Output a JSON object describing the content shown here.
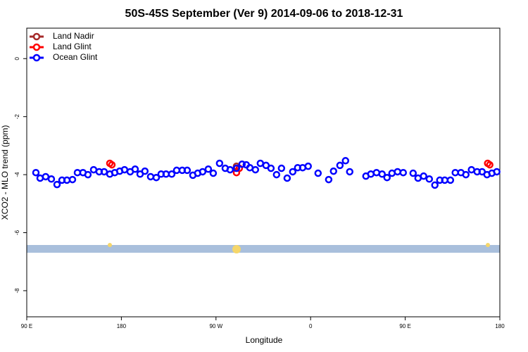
{
  "chart_data": {
    "type": "scatter",
    "title": "50S-45S September (Ver 9)   2014-09-06 to 2018-12-31",
    "x_label": "Longitude",
    "y_label": "XCO2 - MLO trend (ppm)",
    "xlim": [
      90,
      540
    ],
    "xticks": [
      {
        "value": 90,
        "label": "90 E"
      },
      {
        "value": 180,
        "label": "180"
      },
      {
        "value": 270,
        "label": "90 W"
      },
      {
        "value": 360,
        "label": "0"
      },
      {
        "value": 450,
        "label": "90 E"
      },
      {
        "value": 540,
        "label": "180"
      }
    ],
    "ylim": [
      -8.9,
      1.05
    ],
    "yticks": [
      0,
      -2,
      -4,
      -6,
      -8
    ],
    "legend": "top-left",
    "series": [
      {
        "name": "Land Nadir",
        "color": "#a52a2a",
        "x": [
          289.5
        ],
        "values": [
          -3.71
        ]
      },
      {
        "name": "Land Glint",
        "color": "#ff0000",
        "x": [
          169,
          171,
          289.5,
          292.2,
          528.4,
          530.4
        ],
        "values": [
          -3.61,
          -3.66,
          -3.93,
          -3.78,
          -3.61,
          -3.66
        ]
      },
      {
        "name": "Ocean Glint",
        "color": "#0000ff",
        "x": [
          98.7,
          102.7,
          108,
          113.4,
          118.8,
          123.5,
          128.2,
          133.5,
          138.2,
          143.5,
          148.2,
          153.6,
          158.9,
          163.6,
          169,
          173.7,
          178.4,
          183,
          188.4,
          193.1,
          197.8,
          202.4,
          207.8,
          213.2,
          217.8,
          222.5,
          227.9,
          232.6,
          237.9,
          242.6,
          248,
          252.6,
          257.3,
          262.7,
          267.4,
          273.4,
          278.8,
          283.4,
          289.5,
          294.8,
          298.8,
          302.2,
          307.5,
          312.2,
          317.6,
          322.3,
          327.6,
          332.3,
          337.7,
          343,
          347.7,
          352.4,
          357.7,
          367.1,
          377.2,
          381.8,
          387.9,
          393.2,
          397.2,
          412.6,
          417.3,
          422.7,
          428,
          432.7,
          437.4,
          442.7,
          448.1,
          457.5,
          462.2,
          467.5,
          472.9,
          478.2,
          482.9,
          487.6,
          493,
          497.6,
          503,
          507.7,
          513,
          518.4,
          523.1,
          527.8,
          532.4,
          537.1
        ],
        "values": [
          -3.93,
          -4.12,
          -4.07,
          -4.15,
          -4.34,
          -4.19,
          -4.19,
          -4.17,
          -3.93,
          -3.93,
          -4.0,
          -3.83,
          -3.9,
          -3.9,
          -3.98,
          -3.93,
          -3.88,
          -3.83,
          -3.9,
          -3.81,
          -3.98,
          -3.88,
          -4.07,
          -4.1,
          -3.98,
          -3.98,
          -3.98,
          -3.85,
          -3.85,
          -3.85,
          -4.02,
          -3.95,
          -3.9,
          -3.81,
          -3.95,
          -3.61,
          -3.78,
          -3.83,
          -3.78,
          -3.64,
          -3.66,
          -3.76,
          -3.83,
          -3.61,
          -3.68,
          -3.78,
          -4.0,
          -3.78,
          -4.12,
          -3.9,
          -3.76,
          -3.76,
          -3.71,
          -3.95,
          -4.17,
          -3.88,
          -3.68,
          -3.52,
          -3.9,
          -4.05,
          -3.98,
          -3.93,
          -3.98,
          -4.1,
          -3.95,
          -3.9,
          -3.93,
          -3.95,
          -4.12,
          -4.05,
          -4.15,
          -4.36,
          -4.19,
          -4.19,
          -4.19,
          -3.93,
          -3.93,
          -4.0,
          -3.83,
          -3.9,
          -3.9,
          -4.0,
          -3.95,
          -3.9
        ]
      }
    ]
  }
}
